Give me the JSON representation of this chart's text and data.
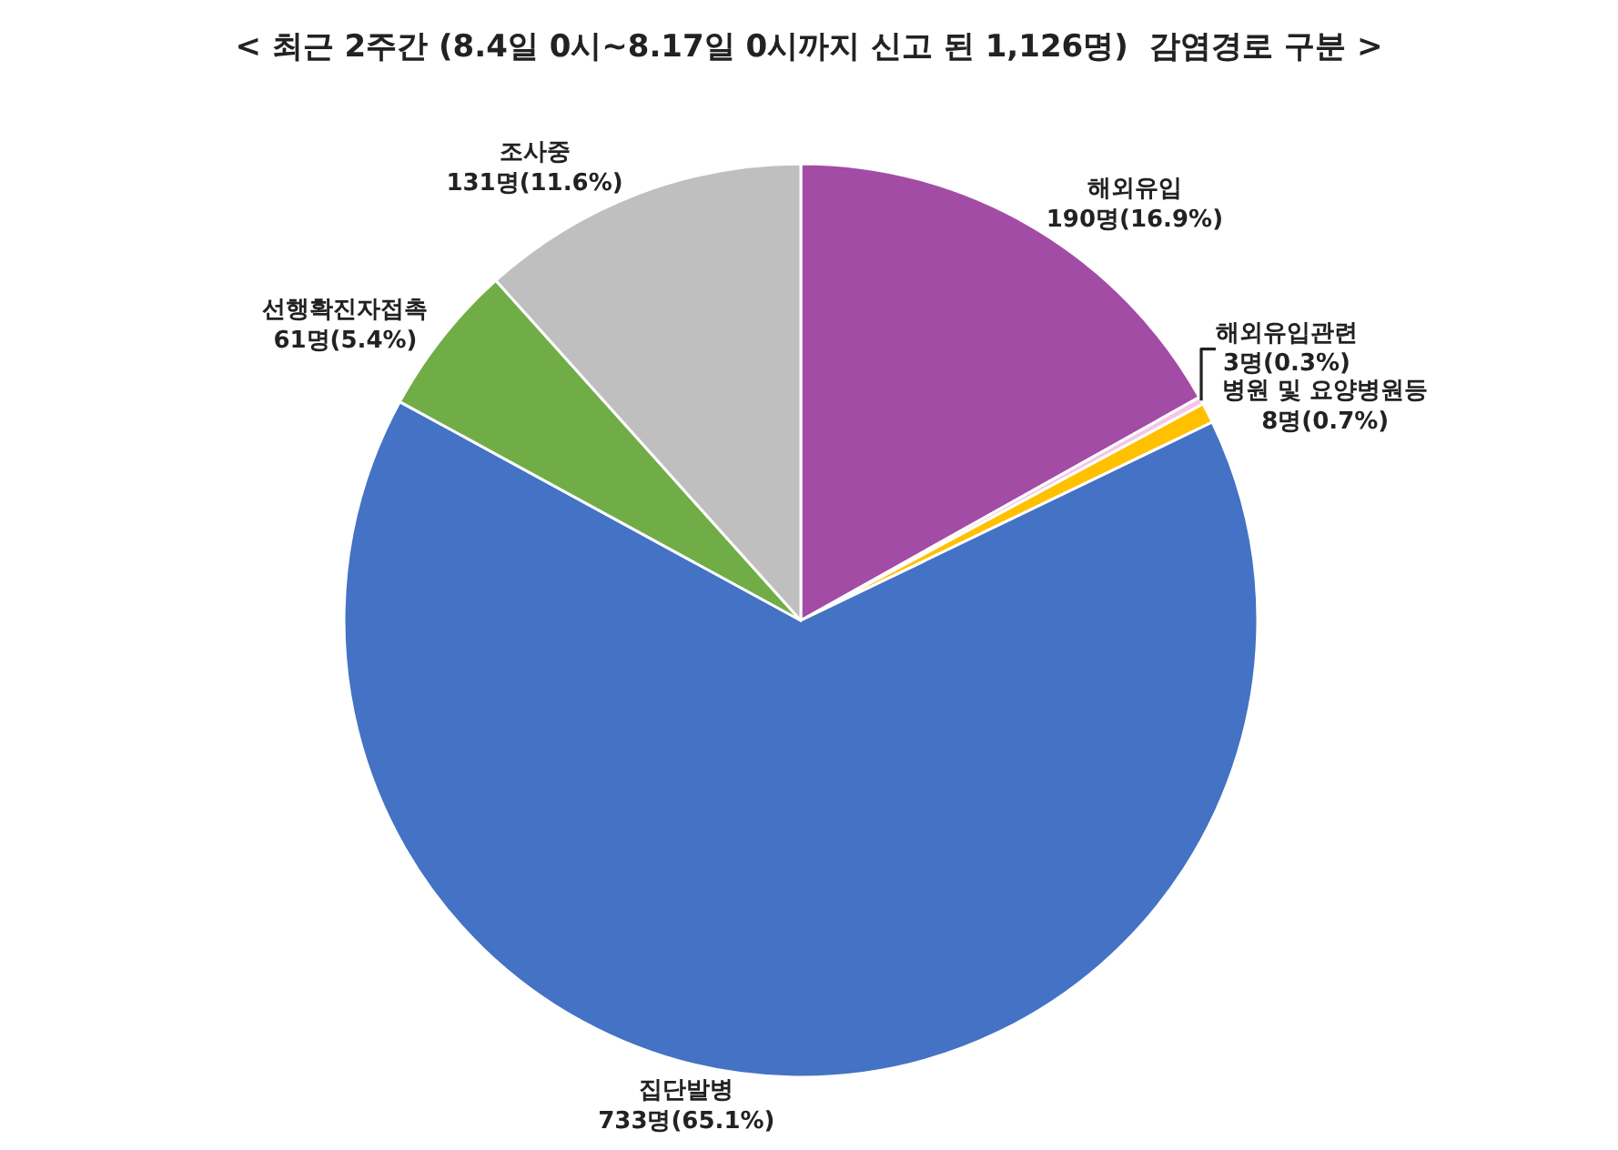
{
  "chart_data": {
    "type": "pie",
    "title": "< 최근 2주간 (8.4일 0시~8.17일 0시까지 신고 된 1,126명)  감염경로 구분 >",
    "categories": [
      "해외유입",
      "해외유입관련",
      "병원 및 요양병원등",
      "집단발병",
      "선행확진자접촉",
      "조사중"
    ],
    "values": [
      190,
      3,
      8,
      733,
      61,
      131
    ],
    "value_labels": [
      "190명(16.9%)",
      "3명(0.3%)",
      "8명(0.7%)",
      "733명(65.1%)",
      "61명(5.4%)",
      "131명(11.6%)"
    ],
    "colors": [
      "#a34ca6",
      "#f6c6e6",
      "#ffc000",
      "#4472c4",
      "#70ad47",
      "#bfbfbf"
    ],
    "legend": false
  }
}
